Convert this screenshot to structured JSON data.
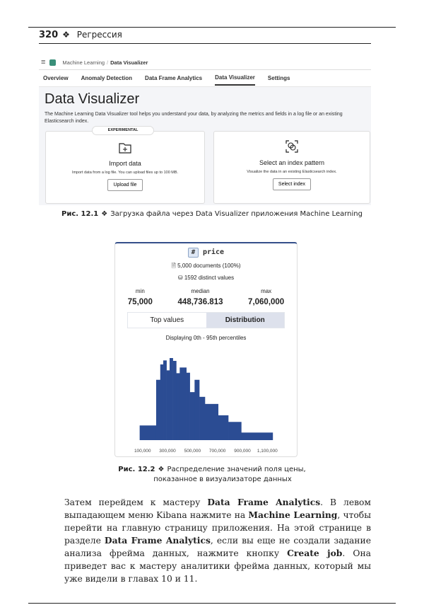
{
  "running_head": {
    "page_number": "320",
    "separator": "❖",
    "chapter": "Регрессия"
  },
  "figure1": {
    "breadcrumb": [
      "Machine Learning",
      "Data Visualizer"
    ],
    "tabs": [
      {
        "label": "Overview"
      },
      {
        "label": "Anomaly Detection"
      },
      {
        "label": "Data Frame Analytics"
      },
      {
        "label": "Data Visualizer",
        "active": true
      },
      {
        "label": "Settings"
      }
    ],
    "title": "Data Visualizer",
    "description": "The Machine Learning Data Visualizer tool helps you understand your data, by analyzing the metrics and fields in a log file or an existing Elasticsearch index.",
    "import_card": {
      "badge": "EXPERIMENTAL",
      "icon": "folder-plus-icon",
      "title": "Import data",
      "text": "Import data from a log file. You can upload files up to 100 MB.",
      "button": "Upload file"
    },
    "index_card": {
      "icon": "index-pattern-icon",
      "title": "Select an index pattern",
      "text": "Visualize the data in an existing Elasticsearch index.",
      "button": "Select index"
    },
    "caption_label": "Рис. 12.1",
    "caption_text": "Загрузка файла через Data Visualizer приложения Machine Learning"
  },
  "figure2": {
    "field_type": "#",
    "field_name": "price",
    "documents": "5,000 documents (100%)",
    "distinct": "1592 distinct values",
    "min_label": "min",
    "min": "75,000",
    "median_label": "median",
    "median": "448,736.813",
    "max_label": "max",
    "max": "7,060,000",
    "tabs": [
      "Top values",
      "Distribution"
    ],
    "active_tab": "Distribution",
    "subtitle": "Displaying 0th - 95th percentiles",
    "caption_label": "Рис. 12.2",
    "caption_line1": "Распределение значений поля цены,",
    "caption_line2": "показанное в визуализаторе данных"
  },
  "chart_data": {
    "type": "histogram",
    "title": "Displaying 0th - 95th percentiles",
    "color": "#2b4c93",
    "xlim": [
      77000,
      1143000
    ],
    "x_ticks": [
      "100,000",
      "300,000",
      "500,000",
      "700,000",
      "900,000",
      "1,100,000"
    ],
    "x_tick_values": [
      100000,
      300000,
      500000,
      700000,
      900000,
      1100000
    ],
    "bins": [
      {
        "from": 77000,
        "to": 209000,
        "relative_count": 62
      },
      {
        "from": 209000,
        "to": 242000,
        "relative_count": 255
      },
      {
        "from": 242000,
        "to": 266000,
        "relative_count": 320
      },
      {
        "from": 266000,
        "to": 292000,
        "relative_count": 337
      },
      {
        "from": 292000,
        "to": 317000,
        "relative_count": 295
      },
      {
        "from": 317000,
        "to": 343000,
        "relative_count": 347
      },
      {
        "from": 343000,
        "to": 370000,
        "relative_count": 335
      },
      {
        "from": 370000,
        "to": 398000,
        "relative_count": 283
      },
      {
        "from": 398000,
        "to": 451000,
        "relative_count": 307
      },
      {
        "from": 451000,
        "to": 479000,
        "relative_count": 285
      },
      {
        "from": 479000,
        "to": 517000,
        "relative_count": 203
      },
      {
        "from": 517000,
        "to": 555000,
        "relative_count": 255
      },
      {
        "from": 555000,
        "to": 600000,
        "relative_count": 183
      },
      {
        "from": 600000,
        "to": 706000,
        "relative_count": 153
      },
      {
        "from": 706000,
        "to": 787000,
        "relative_count": 105
      },
      {
        "from": 787000,
        "to": 891000,
        "relative_count": 77
      },
      {
        "from": 891000,
        "to": 1143000,
        "relative_count": 32
      }
    ]
  },
  "paragraph": [
    {
      "t": "Затем перейдем к мастеру "
    },
    {
      "t": "Data Frame Analytics",
      "b": true
    },
    {
      "t": ". В левом выпадающем меню Kibana нажмите на "
    },
    {
      "t": "Machine Learning",
      "b": true
    },
    {
      "t": ", чтобы перейти на главную страницу приложения. На этой странице в разделе "
    },
    {
      "t": "Data Frame Analytics",
      "b": true
    },
    {
      "t": ", если вы еще не создали задание анализа фрейма данных, нажмите кнопку "
    },
    {
      "t": "Create job",
      "b": true
    },
    {
      "t": ". Она приведет вас к мастеру аналитики фрейма данных, который мы уже видели в главах 10 и 11."
    }
  ]
}
